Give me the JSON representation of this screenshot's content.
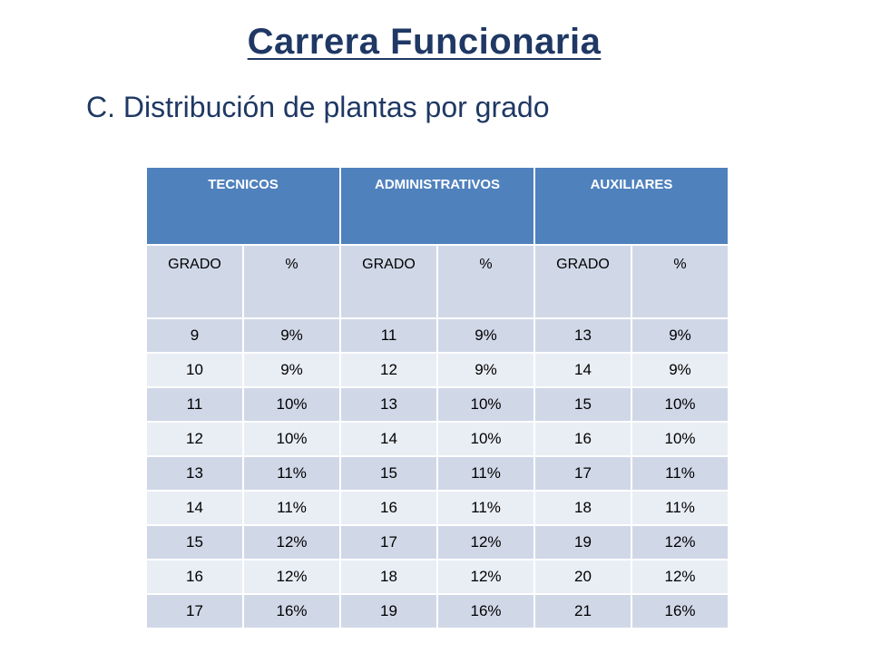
{
  "title": "Carrera Funcionaria",
  "subtitle": "C. Distribución de plantas por grado",
  "table": {
    "groups": [
      "TECNICOS",
      "ADMINISTRATIVOS",
      "AUXILIARES"
    ],
    "subheaders": [
      "GRADO",
      "%",
      "GRADO",
      "%",
      "GRADO",
      "%"
    ],
    "rows": [
      [
        "9",
        "9%",
        "11",
        "9%",
        "13",
        "9%"
      ],
      [
        "10",
        "9%",
        "12",
        "9%",
        "14",
        "9%"
      ],
      [
        "11",
        "10%",
        "13",
        "10%",
        "15",
        "10%"
      ],
      [
        "12",
        "10%",
        "14",
        "10%",
        "16",
        "10%"
      ],
      [
        "13",
        "11%",
        "15",
        "11%",
        "17",
        "11%"
      ],
      [
        "14",
        "11%",
        "16",
        "11%",
        "18",
        "11%"
      ],
      [
        "15",
        "12%",
        "17",
        "12%",
        "19",
        "12%"
      ],
      [
        "16",
        "12%",
        "18",
        "12%",
        "20",
        "12%"
      ],
      [
        "17",
        "16%",
        "19",
        "16%",
        "21",
        "16%"
      ]
    ]
  },
  "colors": {
    "title": "#1f3864",
    "header_bg": "#4f81bd",
    "row_band_dark": "#d0d8e8",
    "row_band_light": "#e9edf4"
  }
}
